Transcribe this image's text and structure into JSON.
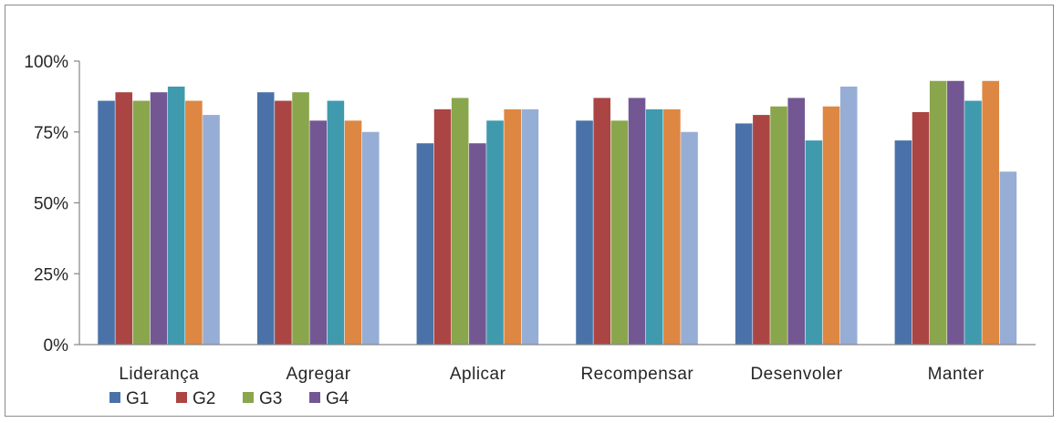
{
  "chart_data": {
    "type": "bar",
    "categories": [
      "Liderança",
      "Agregar",
      "Aplicar",
      "Recompensar",
      "Desenvoler",
      "Manter"
    ],
    "y_ticks": [
      "0%",
      "25%",
      "50%",
      "75%",
      "100%"
    ],
    "ylim": [
      0,
      100
    ],
    "grid": false,
    "legend_position": "bottom-left",
    "series": [
      {
        "name": "G1",
        "color": "#4a72a8",
        "values": [
          86,
          89,
          71,
          79,
          78,
          72
        ]
      },
      {
        "name": "G2",
        "color": "#ab4543",
        "values": [
          89,
          86,
          83,
          87,
          81,
          82
        ]
      },
      {
        "name": "G3",
        "color": "#8aa64c",
        "values": [
          86,
          89,
          87,
          79,
          84,
          93
        ]
      },
      {
        "name": "G4",
        "color": "#735793",
        "values": [
          89,
          79,
          71,
          87,
          87,
          93
        ]
      },
      {
        "name": null,
        "color": "#3f9aae",
        "values": [
          91,
          86,
          79,
          83,
          72,
          86
        ]
      },
      {
        "name": null,
        "color": "#dd8743",
        "values": [
          86,
          79,
          83,
          83,
          84,
          93
        ]
      },
      {
        "name": null,
        "color": "#96add5",
        "values": [
          81,
          75,
          83,
          75,
          91,
          61
        ]
      }
    ],
    "legend": [
      "G1",
      "G2",
      "G3",
      "G4"
    ]
  }
}
